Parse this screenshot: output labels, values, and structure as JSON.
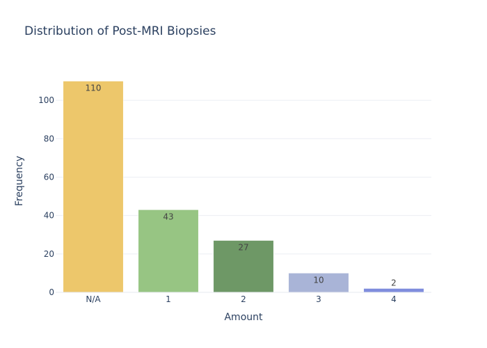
{
  "chart_data": {
    "type": "bar",
    "title": "Distribution of Post-MRI Biopsies",
    "xlabel": "Amount",
    "ylabel": "Frequency",
    "categories": [
      "N/A",
      "1",
      "2",
      "3",
      "4"
    ],
    "values": [
      110,
      43,
      27,
      10,
      2
    ],
    "colors": [
      "#edc76b",
      "#97c583",
      "#6e9866",
      "#a9b4d7",
      "#7f8ddd"
    ],
    "ylim": [
      0,
      116
    ],
    "yticks": [
      0,
      20,
      40,
      60,
      80,
      100
    ],
    "grid": true,
    "legend": "none"
  }
}
